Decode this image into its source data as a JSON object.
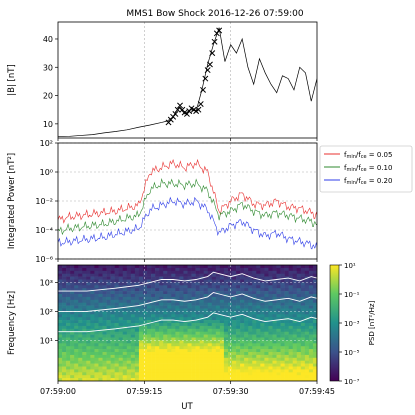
{
  "chart_data": [
    {
      "type": "line",
      "title": "MMS1 Bow Shock 2016-12-26 07:59:00",
      "ylabel": "|B| [nT]",
      "ylim": [
        5,
        46
      ],
      "yticks": [
        10,
        20,
        30,
        40
      ],
      "xlim": [
        "07:59:00",
        "07:59:45"
      ],
      "grid": true,
      "series": [
        {
          "color": "#000000",
          "x_seconds": [
            0,
            2,
            4,
            6,
            8,
            10,
            12,
            14,
            16,
            18,
            19,
            20,
            21,
            22,
            23,
            24,
            25,
            26,
            27,
            28,
            29,
            30,
            31,
            32,
            33,
            34,
            35,
            36,
            37,
            38,
            39,
            40,
            41,
            42,
            43,
            44,
            45
          ],
          "values": [
            5.5,
            5.6,
            5.9,
            6.2,
            6.8,
            7.3,
            7.9,
            8.8,
            9.6,
            10.5,
            11,
            12.5,
            16,
            13.5,
            15,
            14.5,
            22,
            31,
            38,
            44,
            32,
            38,
            35,
            40,
            30,
            24,
            33,
            28,
            24,
            21,
            27,
            26,
            22,
            30,
            28,
            18,
            26
          ]
        },
        {
          "color": "#000000",
          "marker": "x",
          "x_seconds": [
            19.2,
            19.6,
            20.0,
            20.4,
            20.8,
            21.2,
            21.6,
            22.0,
            22.4,
            22.8,
            23.2,
            23.6,
            24.0,
            24.4,
            24.8,
            25.2,
            25.6,
            26.0,
            26.4,
            26.8,
            27.2,
            27.6,
            28.0
          ],
          "values": [
            10.5,
            11.5,
            12.5,
            13.5,
            15,
            16.5,
            15,
            14,
            13.5,
            14.5,
            15.5,
            15,
            14.5,
            15,
            17,
            22,
            26,
            29,
            31,
            35,
            39,
            42,
            43
          ]
        }
      ]
    },
    {
      "type": "line",
      "ylabel": "Integrated Power [nT²]",
      "yscale": "log",
      "ylim_exponent": [
        -6,
        2
      ],
      "ytick_labels": [
        "10²",
        "10⁰",
        "10⁻²",
        "10⁻⁴",
        "10⁻⁶"
      ],
      "grid": true,
      "legend": "outside-right",
      "series": [
        {
          "name": "f_min/f_ce = 0.05",
          "color": "#e8302f",
          "x_seconds": [
            0,
            2,
            4,
            6,
            8,
            10,
            12,
            14,
            16,
            18,
            20,
            22,
            24,
            26,
            28,
            30,
            32,
            34,
            36,
            38,
            40,
            42,
            44,
            45
          ],
          "log10_values": [
            -3.3,
            -3.1,
            -3.0,
            -2.9,
            -2.8,
            -2.7,
            -2.5,
            -2.3,
            0.0,
            0.3,
            0.6,
            0.3,
            0.6,
            0.0,
            -2.7,
            -2.0,
            -1.5,
            -2.2,
            -2.3,
            -2.0,
            -2.4,
            -2.5,
            -2.8,
            -3.0
          ]
        },
        {
          "name": "f_min/f_ce = 0.10",
          "color": "#2f8a2f",
          "x_seconds": [
            0,
            2,
            4,
            6,
            8,
            10,
            12,
            14,
            16,
            18,
            20,
            22,
            24,
            26,
            28,
            30,
            32,
            34,
            36,
            38,
            40,
            42,
            44,
            45
          ],
          "log10_values": [
            -4.1,
            -3.9,
            -3.8,
            -3.7,
            -3.6,
            -3.4,
            -3.2,
            -3.0,
            -1.2,
            -0.8,
            -0.8,
            -0.9,
            -0.8,
            -1.3,
            -3.0,
            -2.7,
            -2.2,
            -2.7,
            -3.0,
            -2.8,
            -3.0,
            -3.2,
            -3.4,
            -3.6
          ]
        },
        {
          "name": "f_min/f_ce = 0.20",
          "color": "#2f3ee8",
          "x_seconds": [
            0,
            2,
            4,
            6,
            8,
            10,
            12,
            14,
            16,
            18,
            20,
            22,
            24,
            26,
            28,
            30,
            32,
            34,
            36,
            38,
            40,
            42,
            44,
            45
          ],
          "log10_values": [
            -4.9,
            -4.8,
            -4.7,
            -4.6,
            -4.5,
            -4.3,
            -4.1,
            -3.9,
            -2.6,
            -2.3,
            -2.0,
            -2.2,
            -2.0,
            -2.6,
            -4.2,
            -3.7,
            -3.4,
            -4.0,
            -4.4,
            -4.2,
            -4.6,
            -4.8,
            -5.0,
            -5.2
          ]
        }
      ],
      "legend_labels": [
        {
          "base": "f",
          "sub1": "min",
          "mid": "/f",
          "sub2": "ce",
          "rest": " = 0.05"
        },
        {
          "base": "f",
          "sub1": "min",
          "mid": "/f",
          "sub2": "ce",
          "rest": " = 0.10"
        },
        {
          "base": "f",
          "sub1": "min",
          "mid": "/f",
          "sub2": "ce",
          "rest": " = 0.20"
        }
      ]
    },
    {
      "type": "heatmap",
      "ylabel": "Frequency [Hz]",
      "xlabel": "UT",
      "yscale": "log",
      "ylim_exponent": [
        -0.4,
        3.6
      ],
      "ytick_labels": [
        "10³",
        "10²",
        "10¹"
      ],
      "xtick_labels": [
        "07:59:00",
        "07:59:15",
        "07:59:30",
        "07:59:45"
      ],
      "xticks_seconds": [
        0,
        15,
        30,
        45
      ],
      "colorbar": {
        "label": "PSD [nT²/Hz]",
        "tick_labels": [
          "10¹",
          "10⁻¹",
          "10⁻³",
          "10⁻⁵",
          "10⁻⁷"
        ],
        "log_range": [
          -7,
          1
        ],
        "colors": [
          "#440154",
          "#3b528b",
          "#21918c",
          "#5ec962",
          "#fde725"
        ]
      },
      "overlay_lines": [
        {
          "color": "#ffffff",
          "x_seconds": [
            0,
            5,
            10,
            14,
            16,
            18,
            20,
            22,
            24,
            26,
            27,
            28,
            30,
            32,
            34,
            36,
            38,
            40,
            42,
            44,
            45
          ],
          "log10_values": [
            2.7,
            2.7,
            2.8,
            2.9,
            3.0,
            3.1,
            3.1,
            3.05,
            3.1,
            3.2,
            3.35,
            3.3,
            3.2,
            3.3,
            3.15,
            3.05,
            3.1,
            3.15,
            3.05,
            3.2,
            3.15
          ]
        },
        {
          "color": "#ffffff",
          "x_seconds": [
            0,
            5,
            10,
            14,
            16,
            18,
            20,
            22,
            24,
            26,
            27,
            28,
            30,
            32,
            34,
            36,
            38,
            40,
            42,
            44,
            45
          ],
          "log10_values": [
            2.0,
            2.0,
            2.1,
            2.2,
            2.3,
            2.4,
            2.4,
            2.35,
            2.4,
            2.5,
            2.65,
            2.6,
            2.5,
            2.6,
            2.45,
            2.35,
            2.4,
            2.45,
            2.35,
            2.5,
            2.45
          ]
        },
        {
          "color": "#ffffff",
          "x_seconds": [
            0,
            5,
            10,
            14,
            16,
            18,
            20,
            22,
            24,
            26,
            27,
            28,
            30,
            32,
            34,
            36,
            38,
            40,
            42,
            44,
            45
          ],
          "log10_values": [
            1.3,
            1.3,
            1.4,
            1.5,
            1.6,
            1.7,
            1.7,
            1.65,
            1.7,
            1.8,
            1.95,
            1.9,
            1.8,
            1.9,
            1.75,
            1.65,
            1.7,
            1.75,
            1.65,
            1.8,
            1.75
          ]
        }
      ]
    }
  ]
}
